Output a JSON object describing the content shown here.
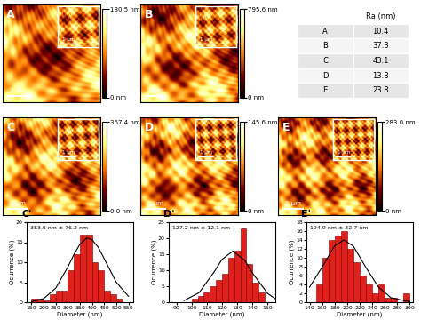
{
  "images": [
    {
      "label": "A",
      "scale_bar": "2 µm",
      "inset_scale_bar": "1 µm",
      "colorbar": {
        "range": [
          0,
          180.5
        ],
        "ticks": [
          {
            "value": 0,
            "label": "0 nm"
          },
          {
            "value": 180.5,
            "label": "180.5 nm"
          }
        ]
      }
    },
    {
      "label": "B",
      "scale_bar": "2 µm",
      "inset_scale_bar": "1 µm",
      "colorbar": {
        "range": [
          0,
          795.6
        ],
        "ticks": [
          {
            "value": 0,
            "label": "0 nm"
          },
          {
            "value": 795.6,
            "label": "795.6 nm"
          }
        ]
      }
    },
    {
      "label": "C",
      "scale_bar": "2 µm",
      "inset_scale_bar": "1 µm",
      "colorbar": {
        "range": [
          0,
          367.4
        ],
        "ticks": [
          {
            "value": 0,
            "label": "0.0 nm"
          },
          {
            "value": 367.4,
            "label": "367.4 nm"
          }
        ]
      }
    },
    {
      "label": "D",
      "scale_bar": "2 µm",
      "inset_scale_bar": "1 µm",
      "colorbar": {
        "range": [
          0,
          145.6
        ],
        "ticks": [
          {
            "value": 0,
            "label": "0 nm"
          },
          {
            "value": 145.6,
            "label": "145.6 nm"
          }
        ]
      }
    },
    {
      "label": "E",
      "scale_bar": "2 µm",
      "inset_scale_bar": "1 µm",
      "colorbar": {
        "range": [
          0,
          283.0
        ],
        "ticks": [
          {
            "value": 0,
            "label": "0 nm"
          },
          {
            "value": 283.0,
            "label": "283.0 nm"
          }
        ]
      }
    }
  ],
  "table": {
    "header": "Ra (nm)",
    "rows": [
      [
        "A",
        10.4
      ],
      [
        "B",
        37.3
      ],
      [
        "C",
        43.1
      ],
      [
        "D",
        13.8
      ],
      [
        "E",
        23.8
      ]
    ]
  },
  "chart_data": [
    {
      "type": "histogram",
      "title": "C'",
      "x_label": "Diameter (nm)",
      "y_label": "Ocurrence (%)",
      "annotations": [
        "383.6 nm ± 76.2 nm"
      ],
      "color": "#e0201b",
      "bins": [
        150,
        175,
        200,
        225,
        250,
        275,
        300,
        325,
        350,
        375,
        400,
        425,
        450,
        475,
        500,
        525,
        550
      ],
      "counts": [
        1,
        1,
        0.5,
        2,
        3,
        3,
        8,
        12,
        17,
        17,
        10,
        8,
        3,
        2,
        1,
        0
      ],
      "fit": {
        "x": [
          150,
          200,
          250,
          300,
          325,
          350,
          375,
          383.6,
          400,
          425,
          450,
          500,
          550
        ],
        "values": [
          0.15,
          0.9,
          3.5,
          8.8,
          11.9,
          14.5,
          15.9,
          16,
          15.6,
          13.8,
          10.9,
          5.0,
          1.5
        ]
      },
      "xlim": [
        130,
        570
      ],
      "xticks": [
        150,
        200,
        250,
        300,
        350,
        400,
        450,
        500,
        550
      ],
      "ylim": [
        0,
        20
      ],
      "yticks": [
        0,
        5,
        10,
        15,
        20
      ]
    },
    {
      "type": "histogram",
      "title": "D'",
      "x_label": "Diameter (nm)",
      "y_label": "Ocurrence (%)",
      "annotations": [
        "127.2 nm ± 12.1 nm"
      ],
      "color": "#e0201b",
      "bins": [
        100,
        104,
        108,
        112,
        116,
        120,
        124,
        128,
        132,
        136,
        140,
        144,
        148
      ],
      "counts": [
        1,
        2,
        3,
        5,
        7,
        9,
        14,
        16,
        23,
        12,
        6,
        3
      ],
      "fit": {
        "x": [
          95,
          105,
          115,
          120,
          127.2,
          135,
          140,
          150,
          155
        ],
        "values": [
          0.5,
          3.0,
          9.6,
          13.4,
          16,
          13.0,
          9.1,
          2.7,
          1.1
        ]
      },
      "xlim": [
        85,
        155
      ],
      "xticks": [
        90,
        100,
        110,
        120,
        130,
        140,
        150
      ],
      "ylim": [
        0,
        25
      ],
      "yticks": [
        0,
        5,
        10,
        15,
        20,
        25
      ]
    },
    {
      "type": "histogram",
      "title": "E'",
      "x_label": "Diameter (nm)",
      "y_label": "Ocurrence (%)",
      "annotations": [
        "194.9 nm ± 32.7 nm"
      ],
      "color": "#e0201b",
      "bins": [
        150,
        160,
        170,
        180,
        190,
        200,
        210,
        220,
        230,
        240,
        250,
        260,
        270,
        280,
        290,
        300
      ],
      "counts": [
        4,
        10,
        14,
        15,
        16,
        12,
        9,
        6,
        4,
        2,
        4,
        1,
        1,
        0,
        2
      ],
      "fit": {
        "x": [
          140,
          160,
          180,
          194.9,
          210,
          230,
          250,
          270,
          300
        ],
        "values": [
          3.4,
          7.9,
          12.7,
          14,
          12.6,
          7.8,
          3.4,
          1.0,
          0.08
        ]
      },
      "xlim": [
        135,
        305
      ],
      "xticks": [
        140,
        160,
        180,
        200,
        220,
        240,
        260,
        280,
        300
      ],
      "ylim": [
        0,
        18
      ],
      "yticks": [
        0,
        2,
        4,
        6,
        8,
        10,
        12,
        14,
        16,
        18
      ]
    }
  ]
}
